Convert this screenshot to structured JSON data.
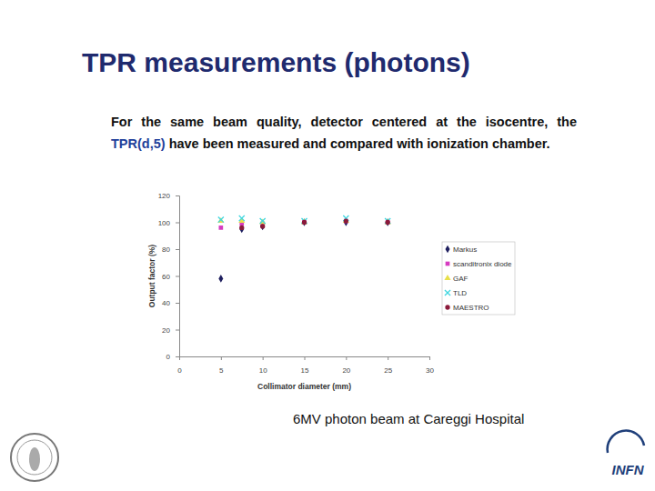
{
  "title": "TPR measurements (photons)",
  "paragraph": [
    "For the same beam quality, detector centered at the isocentre, the ",
    "TPR(d,5)",
    " have been measured and compared with ionization chamber."
  ],
  "caption": "6MV photon beam at Careggi Hospital",
  "logo_text": "INFN",
  "chart_data": {
    "type": "scatter",
    "x_label": "Collimator diameter (mm)",
    "y_label": "Output factor (%)",
    "x": [
      5,
      7.5,
      10,
      15,
      20,
      25
    ],
    "series": [
      {
        "name": "Markus",
        "color": "#1f1f5f",
        "marker": "diamond",
        "values": [
          58,
          95,
          97,
          100,
          100,
          100
        ]
      },
      {
        "name": "scanditronix diode",
        "color": "#d63cc0",
        "marker": "square",
        "values": [
          96,
          99,
          99,
          100,
          101,
          100
        ]
      },
      {
        "name": "GAF",
        "color": "#e8e04a",
        "marker": "triangle",
        "values": [
          101,
          101,
          100,
          100,
          101,
          100
        ]
      },
      {
        "name": "TLD",
        "color": "#3fd6e0",
        "marker": "x",
        "values": [
          102,
          103,
          101,
          101,
          103,
          101
        ]
      },
      {
        "name": "MAESTRO",
        "color": "#8b1a3a",
        "marker": "circle",
        "values": [
          null,
          96,
          97,
          100,
          101,
          100
        ]
      }
    ],
    "xlim": [
      0,
      30
    ],
    "xticks": [
      0,
      5,
      10,
      15,
      20,
      25,
      30
    ],
    "ylim": [
      0,
      120
    ],
    "yticks": [
      0,
      20,
      40,
      60,
      80,
      100,
      120
    ],
    "grid": false,
    "legend": "right"
  }
}
